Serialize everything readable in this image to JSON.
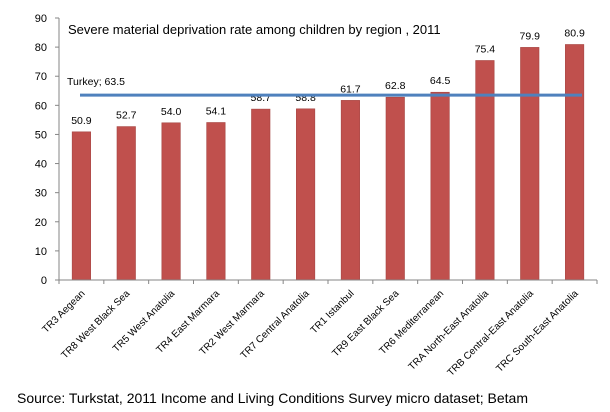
{
  "chart_data": {
    "type": "bar",
    "title": "Severe material deprivation rate among children by region , 2011",
    "categories": [
      "TR3 Aegean",
      "TR8 West Black Sea",
      "TR5 West Anatolia",
      "TR4 East Marmara",
      "TR2 West Marmara",
      "TR7 Central Anatolia",
      "TR1 Istanbul",
      "TR9 East Black Sea",
      "TR6 Mediterranean",
      "TRA North-East  Anatolia",
      "TRB Central-East Anatolia",
      "TRC South-East Anatolia"
    ],
    "values": [
      50.9,
      52.7,
      54.0,
      54.1,
      58.7,
      58.8,
      61.7,
      62.8,
      64.5,
      75.4,
      79.9,
      80.9
    ],
    "value_labels": [
      "50.9",
      "52.7",
      "54.0",
      "54.1",
      "58.7",
      "58.8",
      "61.7",
      "62.8",
      "64.5",
      "75.4",
      "79.9",
      "80.9"
    ],
    "ylim": [
      0,
      90
    ],
    "yticks": [
      0,
      10,
      20,
      30,
      40,
      50,
      60,
      70,
      80,
      90
    ],
    "reference_line": {
      "label": "Turkey; 63.5",
      "value": 63.5
    },
    "xlabel": "",
    "ylabel": "",
    "grid": false,
    "colors": {
      "bar": "#c0504d",
      "bar_edge": "#a64542",
      "reference": "#4f81bd",
      "axis": "#868686"
    }
  },
  "footer": {
    "source": "Source: Turkstat, 2011 Income and Living Conditions Survey micro dataset; Betam"
  }
}
